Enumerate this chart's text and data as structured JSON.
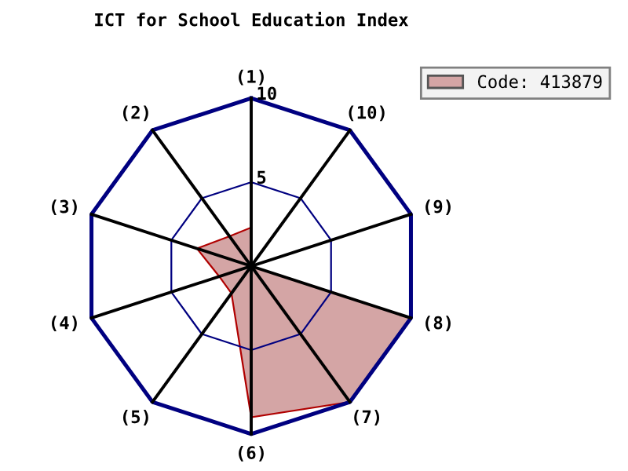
{
  "chart_data": {
    "type": "radar",
    "title": "ICT for School Education Index",
    "categories": [
      "(1)",
      "(10)",
      "(9)",
      "(8)",
      "(7)",
      "(6)",
      "(5)",
      "(4)",
      "(3)",
      "(2)"
    ],
    "series": [
      {
        "name": "Code: 413879",
        "color": "#d4a5a5",
        "values": [
          2.3,
          0,
          0,
          10,
          10,
          9,
          2,
          2,
          3.4,
          2.2
        ]
      }
    ],
    "ylim": [
      0,
      10
    ],
    "yticks": [
      5,
      10
    ],
    "grid": true,
    "legend": "top right"
  }
}
